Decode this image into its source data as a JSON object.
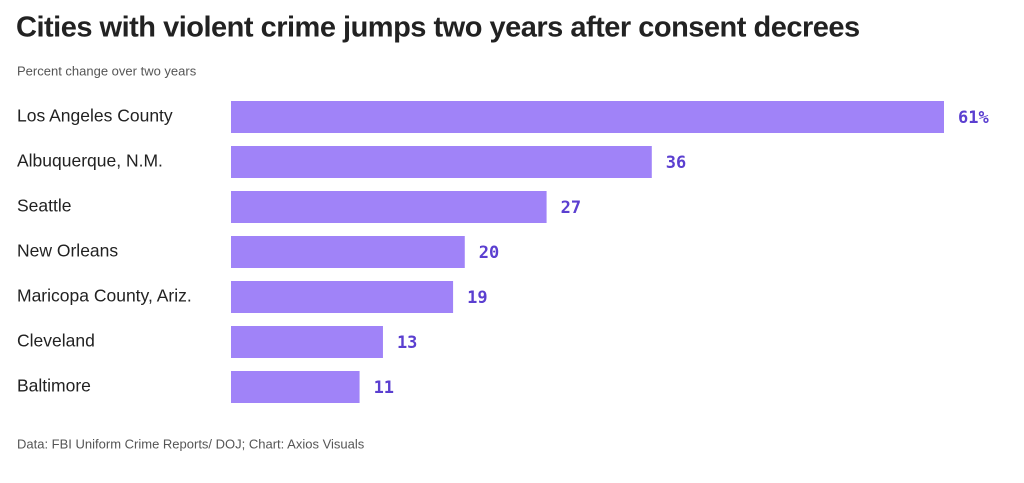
{
  "chart_data": {
    "type": "bar",
    "orientation": "horizontal",
    "title": "Cities with violent crime jumps two years after consent decrees",
    "subtitle": "Percent change over two years",
    "categories": [
      "Los Angeles County",
      "Albuquerque, N.M.",
      "Seattle",
      "New Orleans",
      "Maricopa County, Ariz.",
      "Cleveland",
      "Baltimore"
    ],
    "values": [
      61,
      36,
      27,
      20,
      19,
      13,
      11
    ],
    "value_labels": [
      "61%",
      "36",
      "27",
      "20",
      "19",
      "13",
      "11"
    ],
    "color": "#a083f8",
    "source": "Data: FBI Uniform Crime Reports/ DOJ; Chart: Axios Visuals"
  }
}
